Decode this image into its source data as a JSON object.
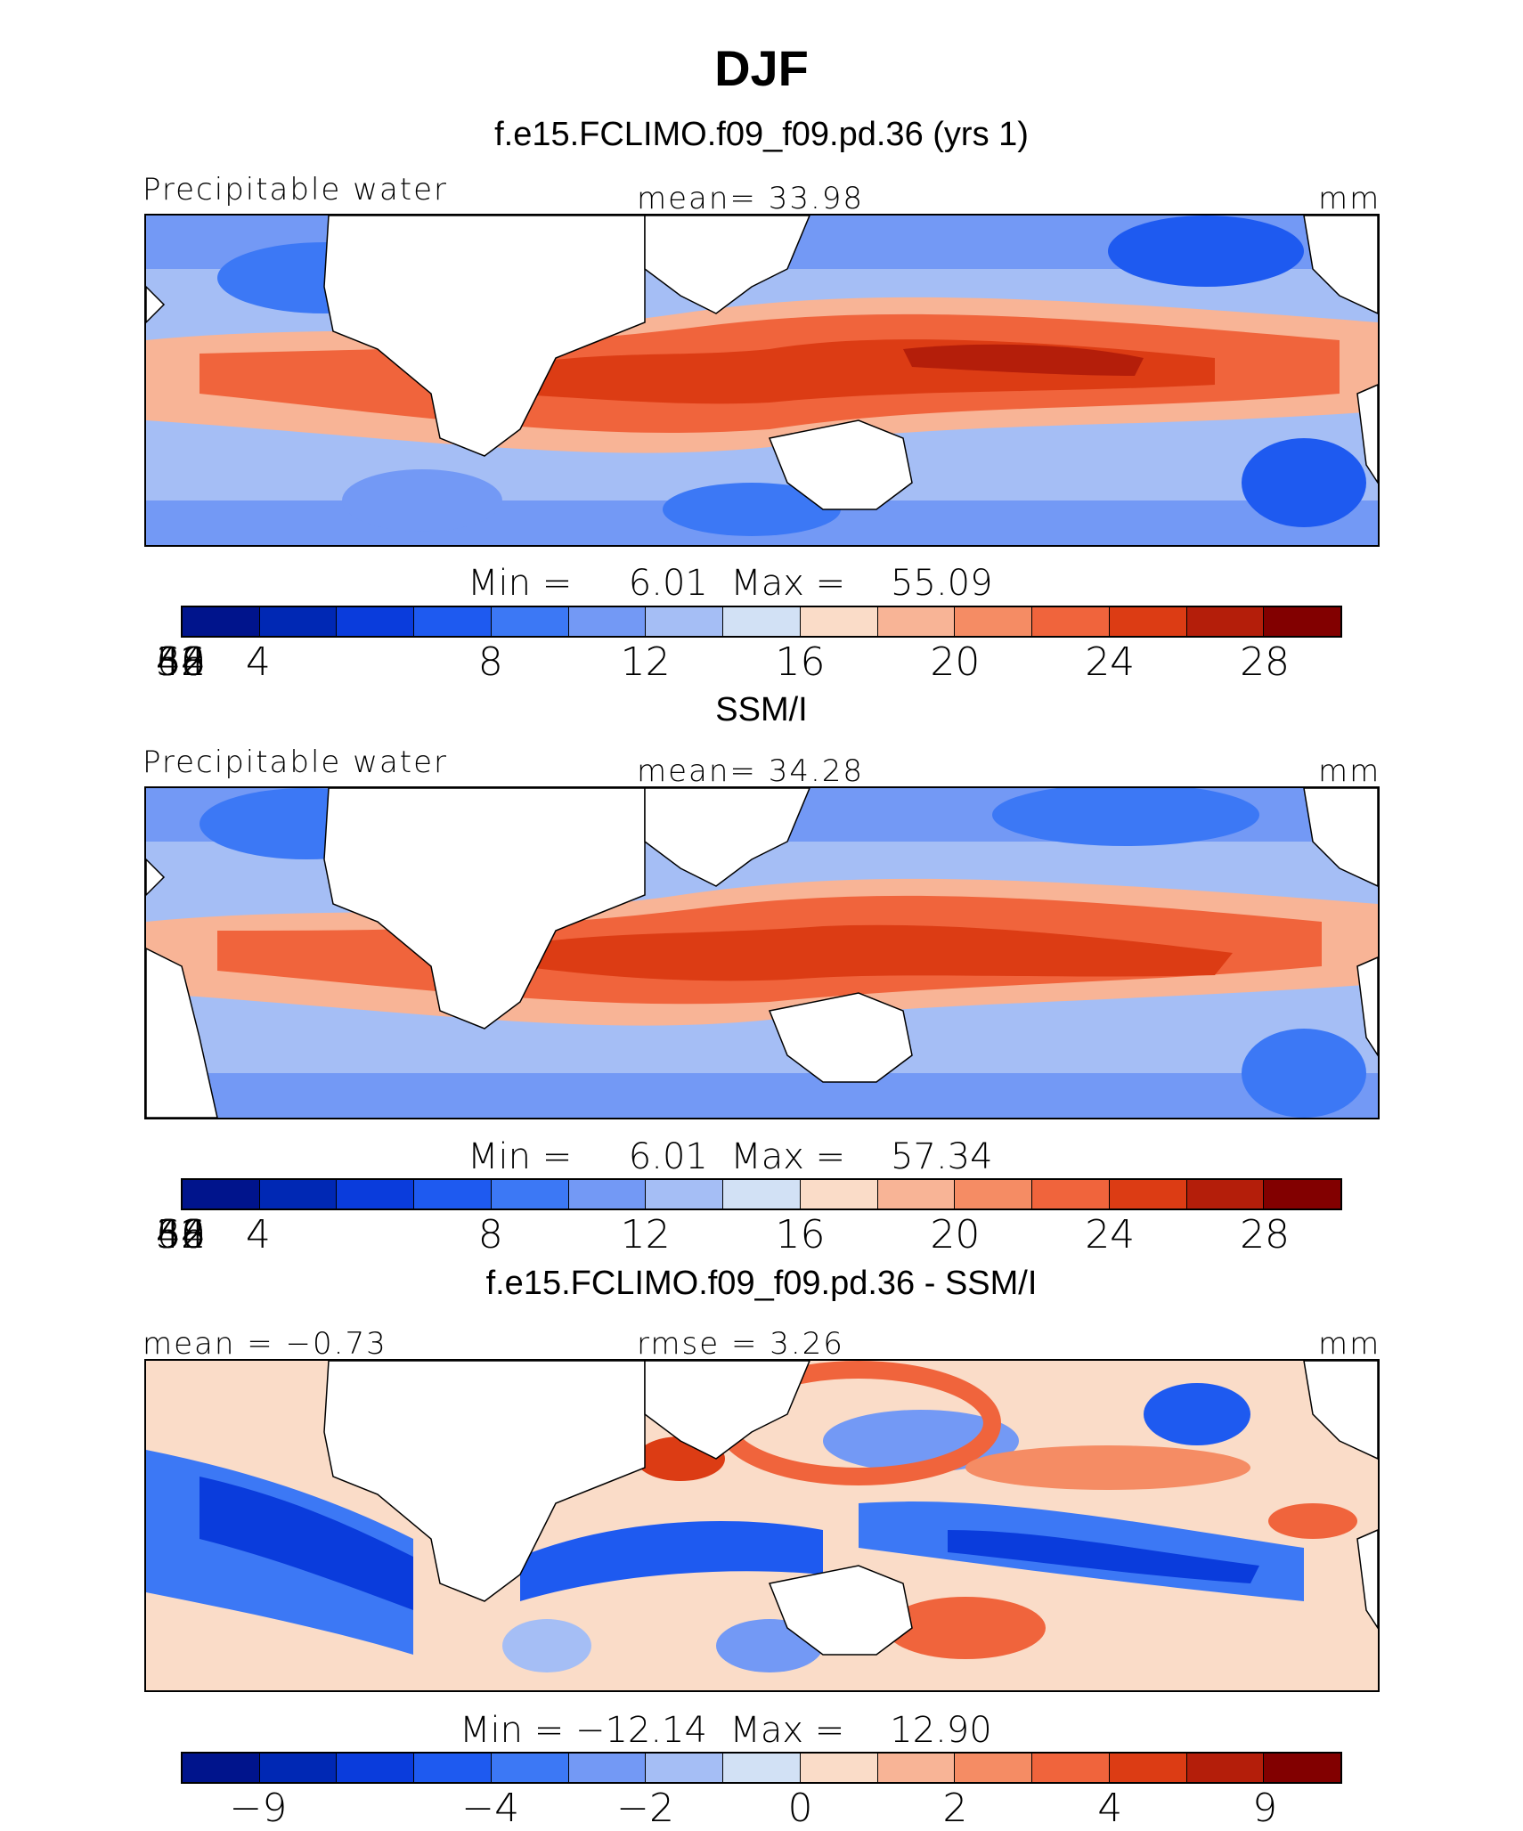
{
  "title": "DJF",
  "panels": [
    {
      "heading": "f.e15.FCLIMO.f09_f09.pd.36 (yrs 1)",
      "left_label": "Precipitable water",
      "center_label": "mean=   33.98",
      "units": "mm",
      "minmax": "Min =     6.01  Max =    55.09",
      "colorbar_ticks": [
        "4",
        "8",
        "12",
        "16",
        "20",
        "24",
        "28",
        "32",
        "36",
        "40",
        "44",
        "48",
        "52",
        "56",
        "60"
      ],
      "colorbar_colors": [
        "#00148c",
        "#0028b4",
        "#0a3cdc",
        "#1e5af0",
        "#3c78f5",
        "#7399f5",
        "#a5bef5",
        "#d2e1f5",
        "#fadcc8",
        "#f8b496",
        "#f58c64",
        "#f0643c",
        "#dc3c14",
        "#b41e0a",
        "#820000"
      ]
    },
    {
      "heading": "SSM/I",
      "left_label": "Precipitable water",
      "center_label": "mean=   34.28",
      "units": "mm",
      "minmax": "Min =     6.01  Max =    57.34",
      "colorbar_ticks": [
        "4",
        "8",
        "12",
        "16",
        "20",
        "24",
        "28",
        "32",
        "36",
        "40",
        "44",
        "48",
        "52",
        "56",
        "60"
      ],
      "colorbar_colors": [
        "#00148c",
        "#0028b4",
        "#0a3cdc",
        "#1e5af0",
        "#3c78f5",
        "#7399f5",
        "#a5bef5",
        "#d2e1f5",
        "#fadcc8",
        "#f8b496",
        "#f58c64",
        "#f0643c",
        "#dc3c14",
        "#b41e0a",
        "#820000"
      ]
    },
    {
      "heading": "f.e15.FCLIMO.f09_f09.pd.36 - SSM/I",
      "left_label": "mean =  −0.73",
      "center_label": "rmse =    3.26",
      "units": "mm",
      "minmax": "Min = −12.14  Max =    12.90",
      "colorbar_ticks": [
        "−9",
        "−4",
        "−2",
        "0",
        "2",
        "4",
        "9"
      ],
      "colorbar_colors": [
        "#00148c",
        "#0028b4",
        "#0a3cdc",
        "#1e5af0",
        "#3c78f5",
        "#7399f5",
        "#a5bef5",
        "#d2e1f5",
        "#fadcc8",
        "#f8b496",
        "#f58c64",
        "#f0643c",
        "#dc3c14",
        "#b41e0a",
        "#820000"
      ]
    }
  ]
}
